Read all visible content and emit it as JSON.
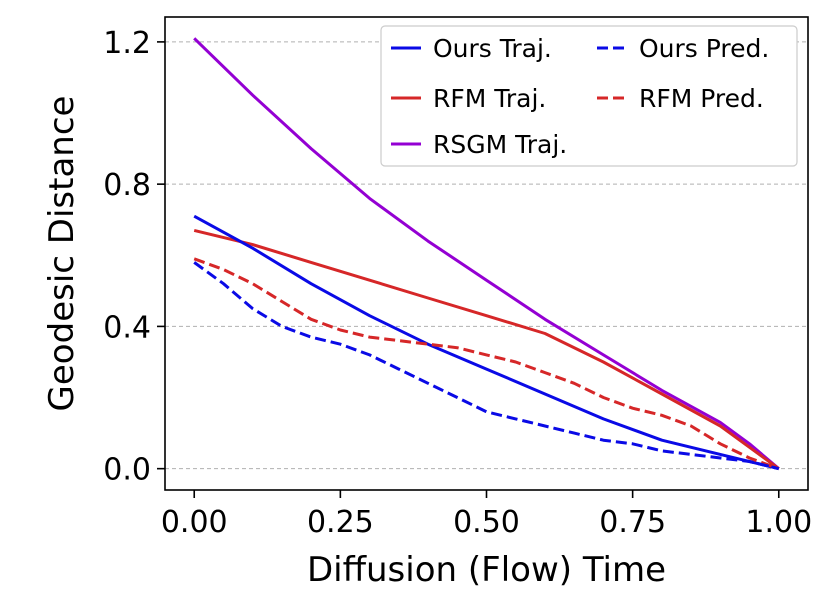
{
  "chart_data": {
    "type": "line",
    "title": "",
    "xlabel": "Diffusion (Flow) Time",
    "ylabel": "Geodesic Distance",
    "xlim": [
      -0.05,
      1.05
    ],
    "ylim": [
      -0.06,
      1.27
    ],
    "xticks": [
      {
        "value": 0.0,
        "label": "0.00"
      },
      {
        "value": 0.25,
        "label": "0.25"
      },
      {
        "value": 0.5,
        "label": "0.50"
      },
      {
        "value": 0.75,
        "label": "0.75"
      },
      {
        "value": 1.0,
        "label": "1.00"
      }
    ],
    "yticks": [
      {
        "value": 0.0,
        "label": "0.0"
      },
      {
        "value": 0.4,
        "label": "0.4"
      },
      {
        "value": 0.8,
        "label": "0.8"
      },
      {
        "value": 1.2,
        "label": "1.2"
      }
    ],
    "grid": "horizontal-dashed",
    "legend_position": "top-right",
    "series": [
      {
        "name": "Ours Traj.",
        "color": "#0a0ae6",
        "dash": "solid",
        "x": [
          0.0,
          0.1,
          0.2,
          0.3,
          0.4,
          0.5,
          0.6,
          0.7,
          0.8,
          0.9,
          1.0
        ],
        "y": [
          0.71,
          0.62,
          0.52,
          0.43,
          0.35,
          0.28,
          0.21,
          0.14,
          0.08,
          0.04,
          0.0
        ]
      },
      {
        "name": "RFM Traj.",
        "color": "#d62728",
        "dash": "solid",
        "x": [
          0.0,
          0.1,
          0.2,
          0.3,
          0.4,
          0.5,
          0.6,
          0.7,
          0.8,
          0.9,
          0.95,
          1.0
        ],
        "y": [
          0.67,
          0.63,
          0.58,
          0.53,
          0.48,
          0.43,
          0.38,
          0.3,
          0.21,
          0.12,
          0.06,
          0.0
        ]
      },
      {
        "name": "RSGM Traj.",
        "color": "#9400d3",
        "dash": "solid",
        "x": [
          0.0,
          0.05,
          0.1,
          0.2,
          0.3,
          0.4,
          0.5,
          0.6,
          0.7,
          0.8,
          0.9,
          0.95,
          1.0
        ],
        "y": [
          1.21,
          1.13,
          1.05,
          0.9,
          0.76,
          0.64,
          0.53,
          0.42,
          0.32,
          0.22,
          0.13,
          0.07,
          0.0
        ]
      },
      {
        "name": "Ours Pred.",
        "color": "#0a0ae6",
        "dash": "dashed",
        "x": [
          0.0,
          0.05,
          0.1,
          0.15,
          0.2,
          0.25,
          0.3,
          0.35,
          0.4,
          0.45,
          0.5,
          0.55,
          0.6,
          0.65,
          0.7,
          0.75,
          0.8,
          0.85,
          0.9,
          0.95,
          1.0
        ],
        "y": [
          0.58,
          0.52,
          0.45,
          0.4,
          0.37,
          0.35,
          0.32,
          0.28,
          0.24,
          0.2,
          0.16,
          0.14,
          0.12,
          0.1,
          0.08,
          0.07,
          0.05,
          0.04,
          0.03,
          0.02,
          0.0
        ]
      },
      {
        "name": "RFM Pred.",
        "color": "#d62728",
        "dash": "dashed",
        "x": [
          0.0,
          0.05,
          0.1,
          0.15,
          0.2,
          0.25,
          0.3,
          0.35,
          0.4,
          0.45,
          0.5,
          0.55,
          0.6,
          0.65,
          0.7,
          0.75,
          0.8,
          0.85,
          0.9,
          0.95,
          1.0
        ],
        "y": [
          0.59,
          0.56,
          0.52,
          0.47,
          0.42,
          0.39,
          0.37,
          0.36,
          0.35,
          0.34,
          0.32,
          0.3,
          0.27,
          0.24,
          0.2,
          0.17,
          0.15,
          0.12,
          0.07,
          0.03,
          0.0
        ]
      }
    ],
    "legend_order": [
      "Ours Traj.",
      "RFM Traj.",
      "RSGM Traj.",
      "Ours Pred.",
      "RFM Pred."
    ]
  }
}
